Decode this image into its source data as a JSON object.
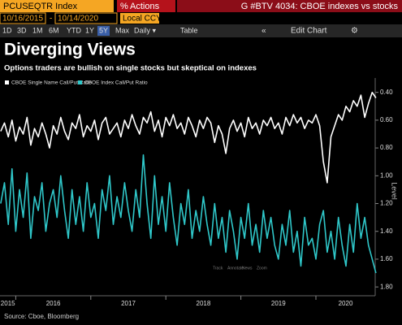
{
  "ui": {
    "ticker": "PCUSEQTR Index",
    "actions": "Actions",
    "actions_icon": "%",
    "window_title": "G #BTV 4034: CBOE indexes vs stocks",
    "start_date": "10/16/2015",
    "date_sep": "-",
    "end_date": "10/14/2020",
    "currency": "Local CCY",
    "buttons": [
      "1D",
      "3D",
      "1M",
      "6M",
      "YTD",
      "1Y",
      "5Y",
      "Max",
      "Daily ▾",
      "Table"
    ],
    "edit_chart": "Edit Chart",
    "toolbar": [
      "Track",
      "Annotate",
      "News",
      "Zoom"
    ],
    "source": "Source: Cboe, Bloomberg"
  },
  "chart_data": {
    "type": "line",
    "title": "Diverging Views",
    "subtitle": "Options traders are bullish on single stocks but skeptical on indexes",
    "y_label": "Level",
    "y_inverted": true,
    "ylim": [
      0.32,
      1.84
    ],
    "xlim": [
      2015.79,
      2020.79
    ],
    "yticks": [
      {
        "value": 0.4,
        "label": "0.40"
      },
      {
        "value": 0.6,
        "label": "0.60"
      },
      {
        "value": 0.8,
        "label": "0.80"
      },
      {
        "value": 1.0,
        "label": "1.00"
      },
      {
        "value": 1.2,
        "label": "1.20"
      },
      {
        "value": 1.4,
        "label": "1.40"
      },
      {
        "value": 1.6,
        "label": "1.60"
      },
      {
        "value": 1.8,
        "label": "1.80"
      }
    ],
    "xticks": [
      2015,
      2016,
      2017,
      2018,
      2019,
      2020
    ],
    "x": [
      2015.8,
      2015.85,
      2015.9,
      2015.95,
      2016,
      2016.05,
      2016.1,
      2016.15,
      2016.2,
      2016.25,
      2016.3,
      2016.35,
      2016.4,
      2016.45,
      2016.5,
      2016.55,
      2016.6,
      2016.65,
      2016.7,
      2016.75,
      2016.8,
      2016.85,
      2016.9,
      2016.95,
      2017,
      2017.05,
      2017.1,
      2017.15,
      2017.2,
      2017.25,
      2017.3,
      2017.35,
      2017.4,
      2017.45,
      2017.5,
      2017.55,
      2017.6,
      2017.65,
      2017.7,
      2017.75,
      2017.8,
      2017.85,
      2017.9,
      2017.95,
      2018,
      2018.05,
      2018.1,
      2018.15,
      2018.2,
      2018.25,
      2018.3,
      2018.35,
      2018.4,
      2018.45,
      2018.5,
      2018.55,
      2018.6,
      2018.65,
      2018.7,
      2018.75,
      2018.8,
      2018.85,
      2018.9,
      2018.95,
      2019,
      2019.05,
      2019.1,
      2019.15,
      2019.2,
      2019.25,
      2019.3,
      2019.35,
      2019.4,
      2019.45,
      2019.5,
      2019.55,
      2019.6,
      2019.65,
      2019.7,
      2019.75,
      2019.8,
      2019.85,
      2019.9,
      2019.95,
      2020,
      2020.05,
      2020.1,
      2020.15,
      2020.2,
      2020.25,
      2020.3,
      2020.35,
      2020.4,
      2020.45,
      2020.5,
      2020.55,
      2020.6,
      2020.65,
      2020.7,
      2020.75,
      2020.8
    ],
    "series": [
      {
        "name": "CBOE Single Name Call/Put Ratio",
        "color": "#ffffff",
        "values": [
          0.68,
          0.62,
          0.72,
          0.6,
          0.75,
          0.65,
          0.7,
          0.58,
          0.78,
          0.66,
          0.72,
          0.62,
          0.7,
          0.8,
          0.64,
          0.7,
          0.58,
          0.68,
          0.74,
          0.62,
          0.66,
          0.56,
          0.72,
          0.64,
          0.68,
          0.6,
          0.74,
          0.62,
          0.58,
          0.7,
          0.66,
          0.62,
          0.72,
          0.6,
          0.66,
          0.56,
          0.64,
          0.7,
          0.58,
          0.62,
          0.54,
          0.68,
          0.6,
          0.72,
          0.58,
          0.64,
          0.56,
          0.66,
          0.62,
          0.7,
          0.58,
          0.64,
          0.72,
          0.6,
          0.66,
          0.58,
          0.62,
          0.76,
          0.64,
          0.7,
          0.84,
          0.66,
          0.6,
          0.68,
          0.62,
          0.72,
          0.58,
          0.66,
          0.62,
          0.7,
          0.6,
          0.64,
          0.58,
          0.66,
          0.62,
          0.7,
          0.58,
          0.64,
          0.56,
          0.62,
          0.58,
          0.66,
          0.6,
          0.62,
          0.56,
          0.64,
          0.9,
          1.05,
          0.72,
          0.64,
          0.56,
          0.6,
          0.5,
          0.54,
          0.46,
          0.5,
          0.42,
          0.58,
          0.48,
          0.4,
          0.44
        ]
      },
      {
        "name": "CBOE Index Call/Put Ratio",
        "color": "#2fc7c9",
        "values": [
          1.2,
          1.05,
          1.35,
          0.95,
          1.4,
          1.1,
          1.3,
          0.98,
          1.45,
          1.15,
          1.25,
          1.05,
          1.4,
          1.2,
          1.1,
          1.3,
          1.0,
          1.25,
          1.45,
          1.1,
          1.35,
          1.15,
          1.4,
          1.05,
          1.3,
          1.2,
          1.45,
          1.1,
          1.25,
          1.0,
          1.35,
          1.15,
          1.3,
          1.05,
          1.25,
          1.4,
          1.1,
          1.3,
          0.85,
          1.2,
          1.45,
          1.0,
          1.35,
          1.15,
          1.4,
          1.05,
          1.3,
          1.5,
          1.2,
          1.35,
          1.1,
          1.45,
          1.25,
          1.4,
          1.15,
          1.35,
          1.5,
          1.2,
          1.45,
          1.3,
          1.55,
          1.25,
          1.4,
          1.6,
          1.3,
          1.45,
          1.2,
          1.5,
          1.35,
          1.55,
          1.25,
          1.45,
          1.3,
          1.5,
          1.6,
          1.35,
          1.5,
          1.25,
          1.55,
          1.4,
          1.65,
          1.3,
          1.5,
          1.45,
          1.6,
          1.35,
          1.25,
          1.55,
          1.4,
          1.6,
          1.3,
          1.5,
          1.65,
          1.35,
          1.55,
          1.2,
          1.45,
          1.3,
          1.5,
          1.6,
          1.7
        ]
      }
    ]
  }
}
